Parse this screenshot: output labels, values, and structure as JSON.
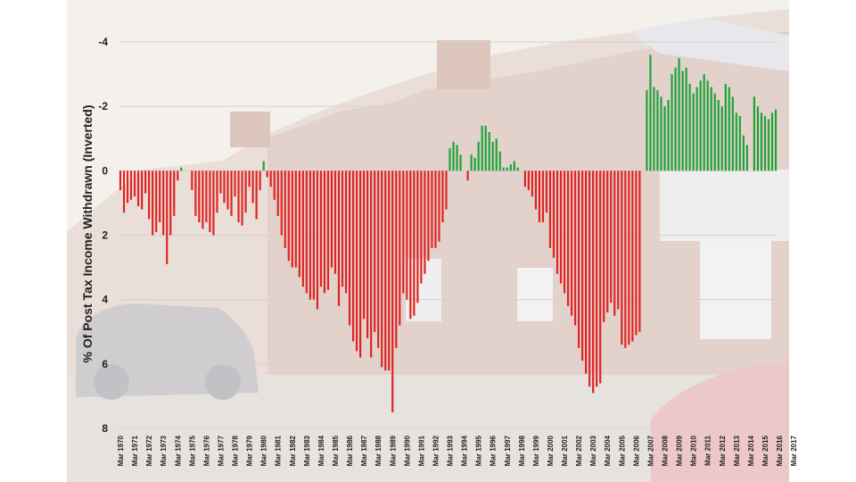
{
  "chart_data": {
    "type": "bar",
    "ylabel": "% Of Post Tax Income Withdrawn (Inverted)",
    "y_inverted": true,
    "ylim": [
      -4,
      8
    ],
    "yticks": [
      "-4",
      "-2",
      "0",
      "2",
      "4",
      "6",
      "8"
    ],
    "ytick_values": [
      -4,
      -2,
      0,
      2,
      4,
      6,
      8
    ],
    "grid": true,
    "colors": {
      "withdrawal": "#e02424",
      "injection": "#1fa23a",
      "background": "#f3efe8"
    },
    "background_image": "house-street-photo",
    "x_labels": [
      "Mar 1970",
      "Mar 1971",
      "Mar 1972",
      "Mar 1973",
      "Mar 1974",
      "Mar 1975",
      "Mar 1976",
      "Mar 1977",
      "Mar 1978",
      "Mar 1979",
      "Mar 1980",
      "Mar 1981",
      "Mar 1982",
      "Mar 1983",
      "Mar 1984",
      "Mar 1985",
      "Mar 1986",
      "Mar 1987",
      "Mar 1988",
      "Mar 1989",
      "Mar 1990",
      "Mar 1991",
      "Mar 1992",
      "Mar 1993",
      "Mar 1994",
      "Mar 1995",
      "Mar 1996",
      "Mar 1997",
      "Mar 1998",
      "Mar 1999",
      "Mar 2000",
      "Mar 2001",
      "Mar 2002",
      "Mar 2003",
      "Mar 2004",
      "Mar 2005",
      "Mar 2006",
      "Mar 2007",
      "Mar 2008",
      "Mar 2009",
      "Mar 2010",
      "Mar 2011",
      "Mar 2012",
      "Mar 2013",
      "Mar 2014",
      "Mar 2015",
      "Mar 2016",
      "Mar 2017"
    ],
    "quarterly_values": [
      0.6,
      1.3,
      1.0,
      0.9,
      0.8,
      1.1,
      1.2,
      0.7,
      1.5,
      2.0,
      1.9,
      1.6,
      2.0,
      2.9,
      2.0,
      1.4,
      0.3,
      -0.1,
      0.0,
      0.0,
      0.6,
      1.4,
      1.6,
      1.8,
      1.6,
      1.9,
      2.0,
      1.3,
      0.7,
      1.0,
      1.2,
      1.4,
      0.8,
      1.6,
      1.7,
      1.3,
      0.5,
      1.0,
      1.5,
      0.6,
      -0.3,
      0.2,
      0.5,
      0.9,
      1.4,
      2.0,
      2.4,
      2.8,
      3.0,
      3.0,
      3.3,
      3.6,
      3.8,
      4.0,
      4.0,
      4.3,
      3.6,
      3.8,
      3.7,
      3.0,
      3.2,
      4.2,
      3.6,
      3.8,
      4.8,
      5.3,
      5.6,
      5.8,
      4.6,
      5.2,
      5.8,
      5.0,
      5.5,
      6.1,
      6.2,
      6.2,
      7.5,
      5.5,
      4.8,
      3.8,
      4.0,
      4.6,
      4.5,
      4.1,
      3.5,
      3.2,
      2.8,
      2.4,
      2.4,
      2.2,
      1.6,
      1.2,
      -0.7,
      -0.9,
      -0.8,
      -0.5,
      0.0,
      0.3,
      -0.5,
      -0.4,
      -0.9,
      -1.4,
      -1.4,
      -1.2,
      -0.9,
      -1.0,
      -0.6,
      -0.1,
      -0.1,
      -0.2,
      -0.3,
      -0.1,
      0.0,
      0.5,
      0.6,
      0.8,
      1.2,
      1.6,
      1.6,
      1.3,
      2.4,
      2.7,
      3.2,
      3.5,
      3.8,
      4.2,
      4.5,
      4.8,
      5.5,
      5.9,
      6.3,
      6.7,
      6.9,
      6.7,
      6.6,
      4.7,
      4.4,
      4.1,
      4.5,
      4.3,
      5.4,
      5.5,
      5.4,
      5.3,
      5.1,
      5.0,
      0.0,
      -2.5,
      -3.6,
      -2.6,
      -2.5,
      -2.3,
      -2.0,
      -2.2,
      -3.0,
      -3.2,
      -3.5,
      -3.1,
      -3.2,
      -2.7,
      -2.4,
      -2.6,
      -2.8,
      -3.0,
      -2.8,
      -2.6,
      -2.4,
      -2.2,
      -2.0,
      -2.7,
      -2.6,
      -2.3,
      -1.8,
      -1.7,
      -1.1,
      -0.8,
      0.0,
      -2.3,
      -2.0,
      -1.8,
      -1.7,
      -1.6,
      -1.8,
      -1.9
    ]
  }
}
